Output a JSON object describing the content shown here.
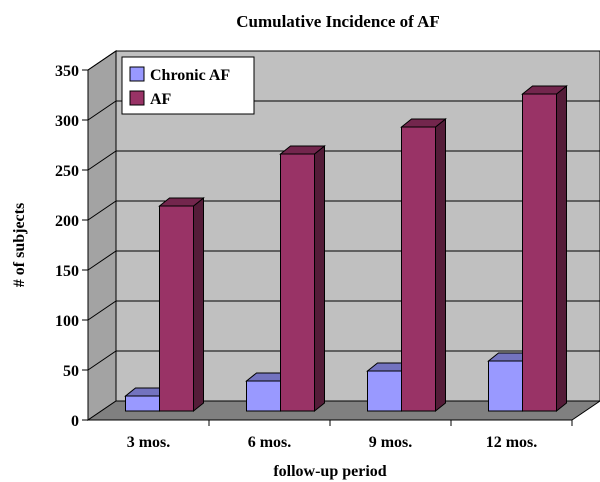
{
  "chart_data": {
    "type": "bar",
    "title": "Cumulative Incidence of AF",
    "xlabel": "follow-up period",
    "ylabel": "# of subjects",
    "categories": [
      "3 mos.",
      "6 mos.",
      "9 mos.",
      "12 mos."
    ],
    "series": [
      {
        "name": "Chronic AF",
        "values": [
          15,
          30,
          40,
          50
        ],
        "color": "#9999ff"
      },
      {
        "name": "AF",
        "values": [
          205,
          257,
          284,
          317
        ],
        "color": "#993366"
      }
    ],
    "ylim": [
      0,
      350
    ],
    "yticks": [
      0,
      50,
      100,
      150,
      200,
      250,
      300,
      350
    ],
    "grid": true,
    "legend_position": "top-left",
    "wall_color": "#c0c0c0",
    "floor_color": "#808080"
  }
}
